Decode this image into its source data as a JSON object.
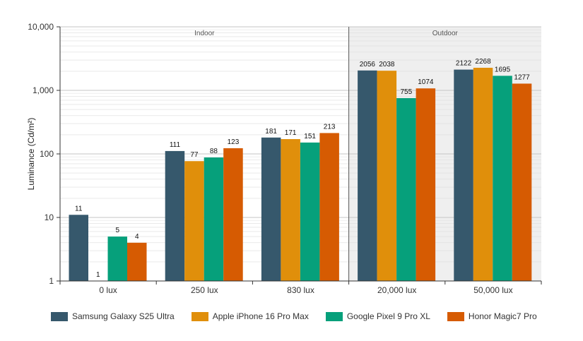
{
  "chart_data": {
    "type": "bar",
    "title": "",
    "xlabel": "",
    "ylabel": "Luminance (Cd/m²)",
    "yscale": "log",
    "ylim": [
      1,
      10000
    ],
    "ytick_labels": [
      "1",
      "10",
      "100",
      "1,000",
      "10,000"
    ],
    "grid": true,
    "legend_position": "bottom",
    "categories": [
      "0 lux",
      "250 lux",
      "830 lux",
      "20,000 lux",
      "50,000 lux"
    ],
    "regions": [
      {
        "label": "Indoor",
        "categories": [
          "0 lux",
          "250 lux",
          "830 lux"
        ],
        "background": "#ffffff"
      },
      {
        "label": "Outdoor",
        "categories": [
          "20,000 lux",
          "50,000 lux"
        ],
        "background": "#efefef"
      }
    ],
    "series": [
      {
        "name": "Samsung Galaxy S25 Ultra",
        "color": "#36586c",
        "values": [
          11,
          111,
          181,
          2056,
          2122
        ]
      },
      {
        "name": "Apple iPhone 16 Pro Max",
        "color": "#e08f0b",
        "values": [
          1,
          77,
          171,
          2038,
          2268
        ]
      },
      {
        "name": "Google Pixel 9 Pro XL",
        "color": "#06a07b",
        "values": [
          5,
          88,
          151,
          755,
          1695
        ]
      },
      {
        "name": "Honor Magic7 Pro",
        "color": "#d65b02",
        "values": [
          4,
          123,
          213,
          1074,
          1277
        ]
      }
    ],
    "bar_labels": [
      [
        "11",
        "111",
        "181",
        "2056",
        "2122"
      ],
      [
        "1",
        "77",
        "171",
        "2038",
        "2268"
      ],
      [
        "5",
        "88",
        "151",
        "755",
        "1695"
      ],
      [
        "4",
        "123",
        "213",
        "1074",
        "1277"
      ]
    ]
  }
}
